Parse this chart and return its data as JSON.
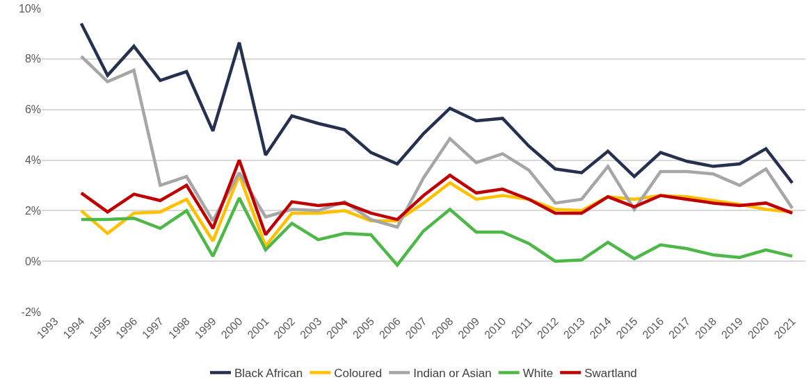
{
  "chart_data": {
    "type": "line",
    "categories": [
      "1993",
      "1994",
      "1995",
      "1996",
      "1997",
      "1998",
      "1999",
      "2000",
      "2001",
      "2002",
      "2003",
      "2004",
      "2005",
      "2006",
      "2007",
      "2008",
      "2009",
      "2010",
      "2011",
      "2012",
      "2013",
      "2014",
      "2015",
      "2016",
      "2017",
      "2018",
      "2019",
      "2020",
      "2021"
    ],
    "series": [
      {
        "name": "Black African",
        "color": "#263150",
        "values": [
          null,
          9.4,
          7.35,
          8.5,
          7.15,
          7.5,
          5.15,
          8.65,
          4.2,
          5.75,
          5.45,
          5.2,
          4.3,
          3.85,
          5.05,
          6.05,
          5.55,
          5.65,
          4.55,
          3.65,
          3.5,
          4.35,
          3.35,
          4.3,
          3.95,
          3.75,
          3.85,
          4.45,
          3.1
        ]
      },
      {
        "name": "Coloured",
        "color": "#ffc000",
        "values": [
          null,
          2.0,
          1.1,
          1.9,
          1.95,
          2.45,
          0.8,
          3.4,
          0.6,
          1.9,
          1.9,
          2.0,
          1.6,
          1.6,
          2.3,
          3.1,
          2.45,
          2.6,
          2.45,
          2.05,
          2.0,
          2.55,
          2.45,
          2.6,
          2.55,
          2.4,
          2.25,
          2.05,
          1.95
        ]
      },
      {
        "name": "Indian or Asian",
        "color": "#a6a6a6",
        "values": [
          null,
          8.1,
          7.1,
          7.55,
          3.0,
          3.35,
          1.6,
          3.5,
          1.75,
          2.05,
          2.0,
          2.35,
          1.65,
          1.35,
          3.3,
          4.85,
          3.9,
          4.25,
          3.6,
          2.3,
          2.45,
          3.75,
          2.05,
          3.55,
          3.55,
          3.45,
          3.0,
          3.65,
          2.1
        ]
      },
      {
        "name": "White",
        "color": "#4db848",
        "values": [
          null,
          1.65,
          1.65,
          1.7,
          1.3,
          2.0,
          0.2,
          2.5,
          0.45,
          1.5,
          0.85,
          1.1,
          1.05,
          -0.15,
          1.2,
          2.05,
          1.15,
          1.15,
          0.7,
          0.0,
          0.05,
          0.75,
          0.1,
          0.65,
          0.5,
          0.25,
          0.15,
          0.45,
          0.2
        ]
      },
      {
        "name": "Swartland",
        "color": "#c00000",
        "values": [
          null,
          2.7,
          1.95,
          2.65,
          2.4,
          3.0,
          1.3,
          4.0,
          1.05,
          2.35,
          2.2,
          2.3,
          1.9,
          1.65,
          2.6,
          3.4,
          2.7,
          2.85,
          2.45,
          1.9,
          1.9,
          2.55,
          2.15,
          2.6,
          2.45,
          2.3,
          2.2,
          2.3,
          1.9
        ]
      }
    ],
    "ylim": [
      -2,
      10
    ],
    "yticks": [
      {
        "value": -2,
        "label": "-2%"
      },
      {
        "value": 0,
        "label": "0%"
      },
      {
        "value": 2,
        "label": "2%"
      },
      {
        "value": 4,
        "label": "4%"
      },
      {
        "value": 6,
        "label": "6%"
      },
      {
        "value": 8,
        "label": "8%"
      },
      {
        "value": 10,
        "label": "10%"
      }
    ],
    "grid": "y",
    "legend": "bottom",
    "marker": "none",
    "line_style": "solid"
  }
}
